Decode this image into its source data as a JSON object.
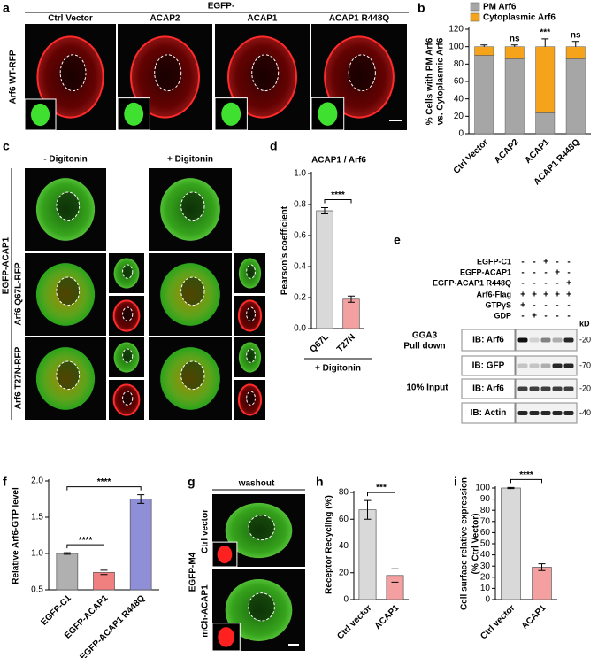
{
  "figure": {
    "a": {
      "letter": "a",
      "header": "EGFP-",
      "columns": [
        "Ctrl Vector",
        "ACAP2",
        "ACAP1",
        "ACAP1 R448Q"
      ],
      "row_label": "Arf6 WT-RFP"
    },
    "c": {
      "letter": "c",
      "columns": [
        "- Digitonin",
        "+ Digitonin"
      ],
      "group_label": "EGFP-ACAP1",
      "rows": [
        "Arf6 Q67L-RFP",
        "Arf6 T27N-RFP"
      ]
    },
    "e": {
      "letter": "e",
      "conditions": [
        {
          "name": "EGFP-C1",
          "lanes": [
            "-",
            "-",
            "+",
            "-",
            "-"
          ]
        },
        {
          "name": "EGFP-ACAP1",
          "lanes": [
            "-",
            "-",
            "-",
            "+",
            "-"
          ]
        },
        {
          "name": "EGFP-ACAP1 R448Q",
          "lanes": [
            "-",
            "-",
            "-",
            "-",
            "+"
          ]
        },
        {
          "name": "Arf6-Flag",
          "lanes": [
            "+",
            "+",
            "+",
            "+",
            "+"
          ]
        },
        {
          "name": "GTPγS",
          "lanes": [
            "+",
            "-",
            "-",
            "-",
            "-"
          ]
        },
        {
          "name": "GDP",
          "lanes": [
            "-",
            "+",
            "-",
            "-",
            "-"
          ]
        }
      ],
      "size_unit": "kD",
      "pull_down_label": [
        "GGA3",
        "Pull down"
      ],
      "input_label": "10% Input",
      "blots": [
        {
          "label": "IB: Arf6",
          "marker": "-20"
        },
        {
          "label": "IB: GFP",
          "marker": "-70"
        },
        {
          "label": "IB: Arf6",
          "marker": "-20"
        },
        {
          "label": "IB: Actin",
          "marker": "-40"
        }
      ]
    },
    "g": {
      "letter": "g",
      "header": "washout",
      "group_label": "EGFP-M4",
      "rows": [
        "Ctrl vector",
        "mCh-ACAP1"
      ]
    }
  },
  "chart_data": [
    {
      "letter": "b",
      "type": "stacked_bar",
      "ylabel": [
        "% Cells with PM Arf6",
        "vs. Cytoplasmic Arf6"
      ],
      "categories": [
        "Ctrl Vector",
        "ACAP2",
        "ACAP1",
        "ACAP1 R448Q"
      ],
      "series": [
        {
          "name": "PM Arf6",
          "color": "#a6a6a6",
          "values": [
            90,
            86,
            24,
            86
          ],
          "errors": [
            1,
            2,
            10,
            3
          ]
        },
        {
          "name": "Cytoplasmic Arf6",
          "color": "#f5a31a",
          "values": [
            10,
            14,
            76,
            14
          ],
          "errors": [
            2,
            2,
            9,
            6
          ]
        }
      ],
      "significance": [
        null,
        "ns",
        "***",
        "ns"
      ],
      "ylim": [
        0,
        120
      ],
      "yticks": [
        0,
        20,
        40,
        60,
        80,
        100,
        120
      ]
    },
    {
      "letter": "d",
      "type": "bar",
      "title": "ACAP1 / Arf6",
      "ylabel": "Pearson's coefficient",
      "xlabel": "+ Digitonin",
      "categories": [
        "Q67L",
        "T27N"
      ],
      "values": [
        0.76,
        0.19
      ],
      "errors": [
        0.02,
        0.02
      ],
      "colors": [
        "#d9d9d9",
        "#f4a0a0"
      ],
      "significance": [
        "****"
      ],
      "ylim": [
        0,
        1
      ],
      "yticks": [
        {
          "value": 0,
          "label": "0.0"
        },
        0.2,
        0.4,
        0.6,
        0.8,
        {
          "value": 1,
          "label": "1.0"
        }
      ]
    },
    {
      "letter": "f",
      "type": "bar",
      "ylabel": "Relative Arf6-GTP level",
      "categories": [
        "EGFP-C1",
        "EGFP-ACAP1",
        "EGFP-ACAP1 R448Q"
      ],
      "values": [
        1,
        0.74,
        1.75
      ],
      "errors": [
        0.01,
        0.03,
        0.06
      ],
      "colors": [
        "#b0b0b0",
        "#f08080",
        "#8e8fd6"
      ],
      "significance": [
        "****",
        "****"
      ],
      "ylim": [
        0.5,
        2
      ],
      "yticks": [
        0.5,
        {
          "value": 1,
          "label": "1.0"
        },
        1.5,
        {
          "value": 2,
          "label": "2.0"
        }
      ]
    },
    {
      "letter": "h",
      "type": "bar",
      "ylabel": "Receptor Recycling (%)",
      "categories": [
        "Ctrl vector",
        "ACAP1"
      ],
      "values": [
        67,
        18
      ],
      "errors": [
        7,
        5
      ],
      "colors": [
        "#d9d9d9",
        "#f4a0a0"
      ],
      "significance": [
        "***"
      ],
      "ylim": [
        0,
        80
      ],
      "yticks": [
        0,
        20,
        40,
        60,
        80
      ]
    },
    {
      "letter": "i",
      "type": "bar",
      "ylabel": [
        "Cell surface relative expression",
        "(% Ctrl Vector)"
      ],
      "categories": [
        "Ctrl vector",
        "ACAP1"
      ],
      "values": [
        100,
        29
      ],
      "errors": [
        0.5,
        3
      ],
      "colors": [
        "#d9d9d9",
        "#f4a0a0"
      ],
      "significance": [
        "****"
      ],
      "ylim": [
        0,
        100
      ],
      "yticks": [
        0,
        10,
        20,
        30,
        40,
        50,
        60,
        70,
        80,
        90,
        100
      ]
    }
  ]
}
